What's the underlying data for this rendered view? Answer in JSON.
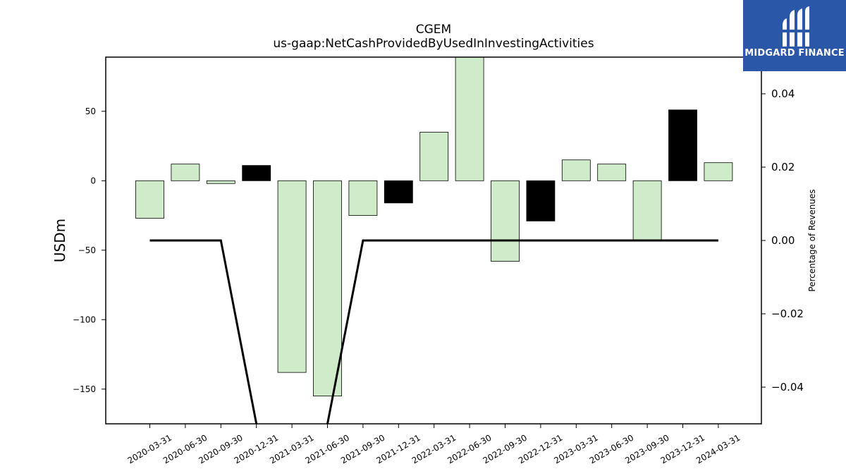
{
  "brand": {
    "name": "MIDGARD FINANCE",
    "colors": {
      "background": "#2a57a8",
      "text": "#ffffff"
    }
  },
  "chart_data": {
    "type": "bar",
    "title": "CGEM",
    "subtitle": "us-gaap:NetCashProvidedByUsedInInvestingActivities",
    "ylabel": "USDm",
    "y2label": "Percentage of Revenues",
    "ylim": [
      -175,
      89
    ],
    "y2lim": [
      -0.05,
      0.05
    ],
    "yticks": [
      -150,
      -100,
      -50,
      0,
      50
    ],
    "y2ticks": [
      -0.04,
      -0.02,
      0.0,
      0.02,
      0.04
    ],
    "ytick_labels": [
      "−150",
      "−100",
      "−50",
      "0",
      "50"
    ],
    "y2tick_labels": [
      "−0.04",
      "−0.02",
      "0.00",
      "0.02",
      "0.04"
    ],
    "categories": [
      "2020-03-31",
      "2020-06-30",
      "2020-09-30",
      "2020-12-31",
      "2021-03-31",
      "2021-06-30",
      "2021-09-30",
      "2021-12-31",
      "2022-03-31",
      "2022-06-30",
      "2022-09-30",
      "2022-12-31",
      "2023-03-31",
      "2023-06-30",
      "2023-09-30",
      "2023-12-31",
      "2024-03-31"
    ],
    "values": [
      -27,
      12,
      -2,
      11,
      -138,
      -155,
      -25,
      -16,
      35,
      92,
      -58,
      -29,
      15,
      12,
      -43,
      51,
      13
    ],
    "bar_colors": [
      "#d0ebc9",
      "#d0ebc9",
      "#d0ebc9",
      "#000000",
      "#d0ebc9",
      "#d0ebc9",
      "#d0ebc9",
      "#000000",
      "#d0ebc9",
      "#d0ebc9",
      "#d0ebc9",
      "#000000",
      "#d0ebc9",
      "#d0ebc9",
      "#d0ebc9",
      "#000000",
      "#d0ebc9"
    ],
    "line_series": {
      "axis": "right",
      "color": "#000000",
      "values": [
        0,
        0,
        0,
        -0.8,
        null,
        -0.8,
        0,
        0,
        0,
        0,
        0,
        0,
        0,
        0,
        0,
        0,
        0
      ]
    },
    "grid": false,
    "legend": "none"
  }
}
